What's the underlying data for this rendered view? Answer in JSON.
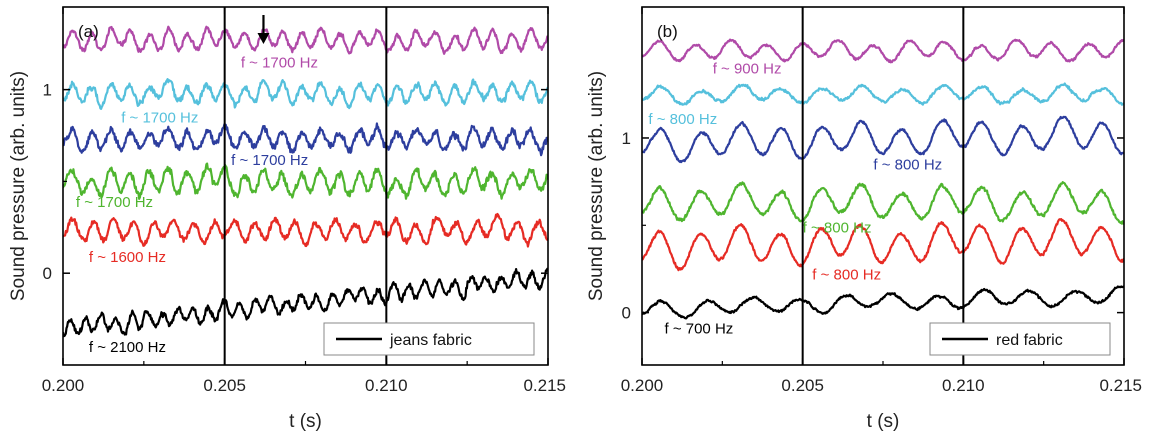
{
  "chart_data": [
    {
      "type": "line",
      "panel_label": "(a)",
      "xlabel": "t (s)",
      "ylabel": "Sound pressure (arb. units)",
      "xlim": [
        0.2,
        0.215
      ],
      "ylim": [
        -0.5,
        1.45
      ],
      "xticks": [
        0.2,
        0.205,
        0.21,
        0.215
      ],
      "xtick_labels": [
        "0.200",
        "0.205",
        "0.210",
        "0.215"
      ],
      "yticks": [
        0,
        1
      ],
      "ytick_labels": [
        "0",
        "1"
      ],
      "vlines": [
        0.205,
        0.21
      ],
      "arrow_x": 0.2062,
      "legend": {
        "label": "jeans fabric",
        "color": "#000000",
        "position": "bottom-right"
      },
      "series": [
        {
          "color": "#b04aa8",
          "baseline": 1.27,
          "amp": 0.045,
          "period_ms": 0.59,
          "noise": 0.02,
          "trend": 0.0,
          "label": {
            "text": "f ~ 1700 Hz",
            "x": 0.2055,
            "y": 1.12
          }
        },
        {
          "color": "#55c0dc",
          "baseline": 0.98,
          "amp": 0.045,
          "period_ms": 0.59,
          "noise": 0.025,
          "trend": 0.0,
          "label": {
            "text": "f ~ 1700 Hz",
            "x": 0.2018,
            "y": 0.82
          }
        },
        {
          "color": "#2d3e9e",
          "baseline": 0.73,
          "amp": 0.045,
          "period_ms": 0.59,
          "noise": 0.03,
          "trend": 0.0,
          "label": {
            "text": "f ~ 1700 Hz",
            "x": 0.2052,
            "y": 0.59
          }
        },
        {
          "color": "#4fb52f",
          "baseline": 0.5,
          "amp": 0.055,
          "period_ms": 0.59,
          "noise": 0.03,
          "trend": 0.0,
          "label": {
            "text": "f ~ 1700 Hz",
            "x": 0.2004,
            "y": 0.36
          }
        },
        {
          "color": "#e62b24",
          "baseline": 0.23,
          "amp": 0.05,
          "period_ms": 0.625,
          "noise": 0.025,
          "trend": 0.0,
          "label": {
            "text": "f ~ 1600 Hz",
            "x": 0.2008,
            "y": 0.06
          }
        },
        {
          "color": "#000000",
          "baseline": -0.3,
          "amp": 0.04,
          "period_ms": 0.476,
          "noise": 0.025,
          "trend": 0.28,
          "label": {
            "text": "f ~ 2100 Hz",
            "x": 0.2008,
            "y": -0.43
          }
        }
      ]
    },
    {
      "type": "line",
      "panel_label": "(b)",
      "xlabel": "t (s)",
      "ylabel": "Sound pressure (arb. units)",
      "xlim": [
        0.2,
        0.215
      ],
      "ylim": [
        -0.3,
        1.75
      ],
      "xticks": [
        0.2,
        0.205,
        0.21,
        0.215
      ],
      "xtick_labels": [
        "0.200",
        "0.205",
        "0.210",
        "0.215"
      ],
      "yticks": [
        0,
        1
      ],
      "ytick_labels": [
        "0",
        "1"
      ],
      "vlines": [
        0.205,
        0.21
      ],
      "legend": {
        "label": "red fabric",
        "color": "#000000",
        "position": "bottom-right"
      },
      "series": [
        {
          "color": "#b04aa8",
          "baseline": 1.5,
          "amp": 0.045,
          "period_ms": 1.11,
          "noise": 0.01,
          "trend": 0.0,
          "label": {
            "text": "f ~ 900 Hz",
            "x": 0.2022,
            "y": 1.37
          }
        },
        {
          "color": "#55c0dc",
          "baseline": 1.25,
          "amp": 0.04,
          "period_ms": 1.25,
          "noise": 0.012,
          "trend": 0.0,
          "label": {
            "text": "f ~ 800 Hz",
            "x": 0.2002,
            "y": 1.08
          }
        },
        {
          "color": "#2d3e9e",
          "baseline": 0.97,
          "amp": 0.08,
          "period_ms": 1.25,
          "noise": 0.012,
          "trend": 0.05,
          "label": {
            "text": "f ~ 800 Hz",
            "x": 0.2072,
            "y": 0.82
          }
        },
        {
          "color": "#4fb52f",
          "baseline": 0.63,
          "amp": 0.08,
          "period_ms": 1.25,
          "noise": 0.015,
          "trend": 0.0,
          "label": {
            "text": "f ~ 800 Hz",
            "x": 0.205,
            "y": 0.46
          }
        },
        {
          "color": "#e62b24",
          "baseline": 0.37,
          "amp": 0.09,
          "period_ms": 1.25,
          "noise": 0.012,
          "trend": 0.05,
          "label": {
            "text": "f ~ 800 Hz",
            "x": 0.2053,
            "y": 0.19
          }
        },
        {
          "color": "#000000",
          "baseline": 0.02,
          "amp": 0.04,
          "period_ms": 1.43,
          "noise": 0.01,
          "trend": 0.08,
          "label": {
            "text": "f ~ 700 Hz",
            "x": 0.2007,
            "y": -0.12
          }
        }
      ]
    }
  ]
}
